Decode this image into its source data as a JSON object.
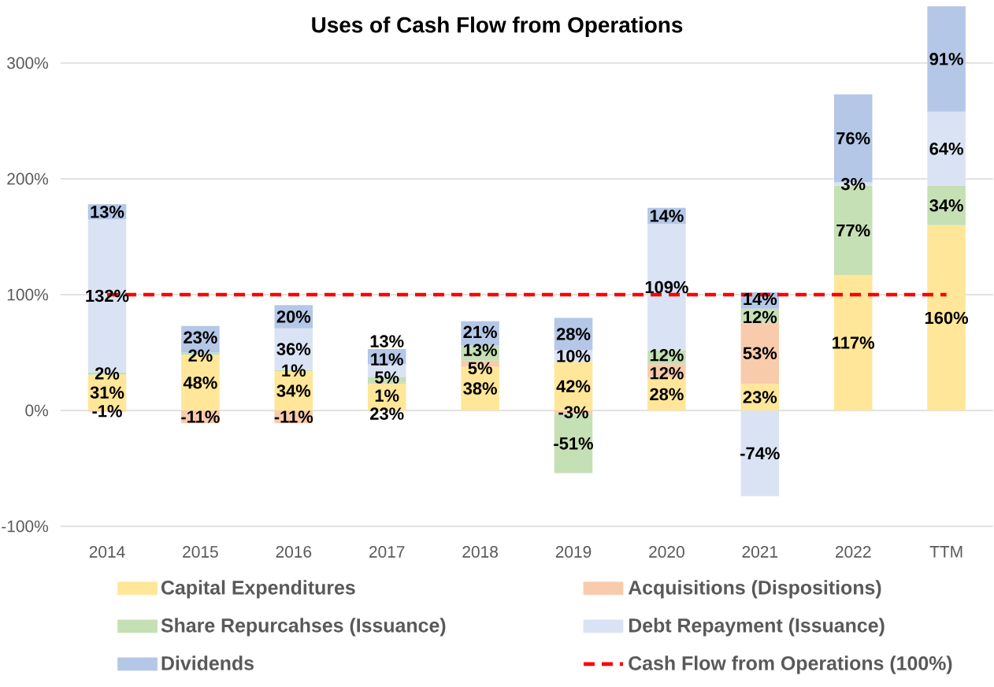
{
  "chart_data": {
    "type": "bar",
    "title": "Uses of Cash Flow from Operations",
    "categories": [
      "2014",
      "2015",
      "2016",
      "2017",
      "2018",
      "2019",
      "2020",
      "2021",
      "2022",
      "TTM"
    ],
    "stacked": true,
    "series": [
      {
        "name": "Capital Expenditures",
        "color": "#ffe699",
        "values": [
          31,
          48,
          34,
          23,
          38,
          42,
          28,
          23,
          117,
          160
        ],
        "value_labels": [
          "31%",
          "48%",
          "34%",
          "23%",
          "38%",
          "42%",
          "28%",
          "23%",
          "117%",
          "160%"
        ]
      },
      {
        "name": "Acquisitions (Dispositions)",
        "color": "#f8cbad",
        "values": [
          -1,
          -11,
          -11,
          1,
          5,
          -3,
          12,
          53,
          null,
          null
        ],
        "value_labels": [
          "-1%",
          "-11%",
          "-11%",
          "1%",
          "5%",
          "-3%",
          "12%",
          "53%",
          null,
          null
        ]
      },
      {
        "name": "Share Repurcahses (Issuance)",
        "color": "#c5e0b4",
        "values": [
          2,
          2,
          1,
          5,
          13,
          -51,
          12,
          12,
          77,
          34
        ],
        "value_labels": [
          "2%",
          "2%",
          "1%",
          "5%",
          "13%",
          "-51%",
          "12%",
          "12%",
          "77%",
          "34%"
        ]
      },
      {
        "name": "Debt Repayment (Issuance)",
        "color": "#dae3f3",
        "values": [
          132,
          null,
          36,
          11,
          null,
          10,
          109,
          -74,
          3,
          64
        ],
        "value_labels": [
          "132%",
          null,
          "36%",
          "11%",
          null,
          "10%",
          "109%",
          "-74%",
          "3%",
          "64%"
        ]
      },
      {
        "name": "Dividends",
        "color": "#b4c7e7",
        "values": [
          13,
          23,
          20,
          13,
          21,
          28,
          14,
          14,
          76,
          91
        ],
        "value_labels": [
          "13%",
          "23%",
          "20%",
          "13%",
          "21%",
          "28%",
          "14%",
          "14%",
          "76%",
          "91%"
        ]
      },
      {
        "name": "Cash Flow from Operations (100%)",
        "type": "line",
        "color": "#ff0000",
        "line_style": "dashed",
        "values": [
          100,
          100,
          100,
          100,
          100,
          100,
          100,
          100,
          100,
          100
        ]
      }
    ],
    "ylim": [
      -100,
      350
    ],
    "yticks": [
      {
        "value": -100,
        "label": "-100%"
      },
      {
        "value": 0,
        "label": "0%"
      },
      {
        "value": 100,
        "label": "100%"
      },
      {
        "value": 200,
        "label": "200%"
      },
      {
        "value": 300,
        "label": "300%"
      }
    ],
    "grid": "y",
    "legend": "bottom"
  }
}
